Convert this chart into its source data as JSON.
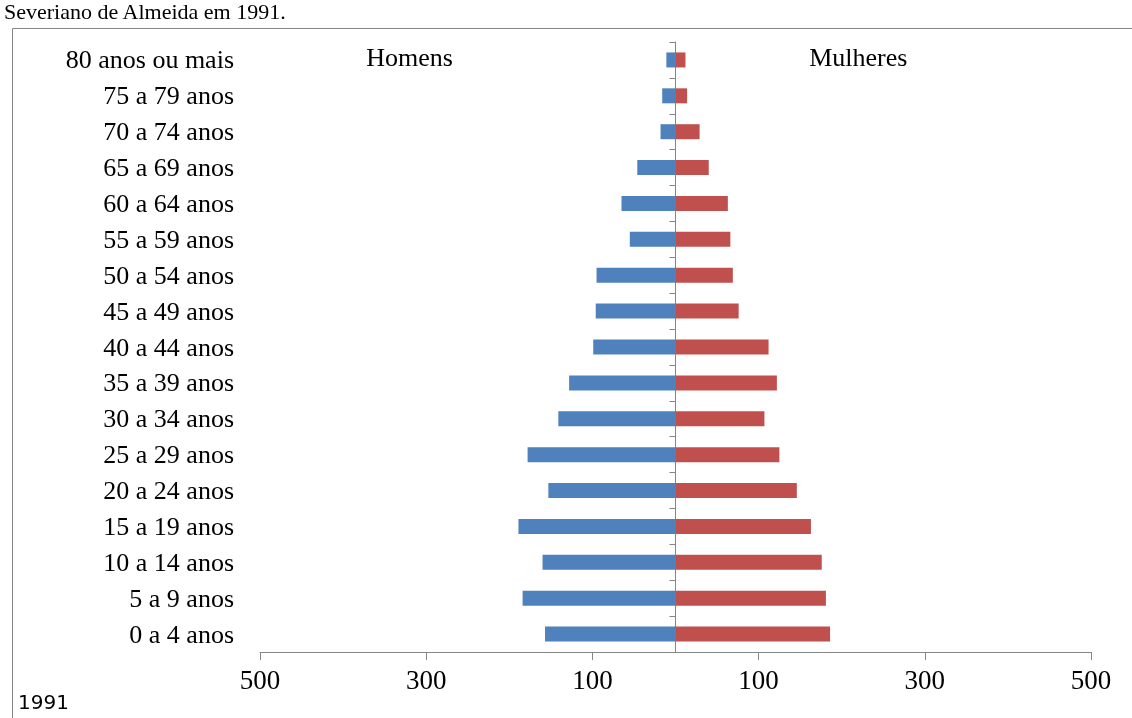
{
  "chart_data": {
    "type": "bar",
    "orientation": "horizontal",
    "title": "Severiano de Almeida em 1991.",
    "categories": [
      "80 anos ou mais",
      "75 a 79 anos",
      "70 a 74 anos",
      "65 a 69 anos",
      "60 a 64 anos",
      "55 a 59 anos",
      "50 a 54 anos",
      "45 a 49 anos",
      "40 a 44 anos",
      "35 a 39 anos",
      "30 a 34 anos",
      "25 a 29 anos",
      "20 a 24 anos",
      "15 a 19 anos",
      "10 a 14 anos",
      "5 a 9 anos",
      "0 a 4 anos"
    ],
    "series": [
      {
        "color": "#4f81bd",
        "values": [
          -11,
          -16,
          -18,
          -46,
          -65,
          -55,
          -95,
          -96,
          -99,
          -128,
          -141,
          -178,
          -153,
          -189,
          -160,
          -184,
          -157
        ]
      },
      {
        "color": "#c0504d",
        "values": [
          12,
          14,
          29,
          40,
          63,
          66,
          69,
          76,
          112,
          122,
          107,
          125,
          146,
          163,
          176,
          181,
          186
        ]
      }
    ],
    "xlim": [
      -500,
      500
    ],
    "xticks": [
      {
        "value": -500,
        "label": "500"
      },
      {
        "value": -300,
        "label": "300"
      },
      {
        "value": -100,
        "label": "100"
      },
      100,
      300,
      500
    ],
    "annotations": [
      "Homens",
      "Mulheres",
      "1991"
    ],
    "stacked": true,
    "grid": false
  }
}
